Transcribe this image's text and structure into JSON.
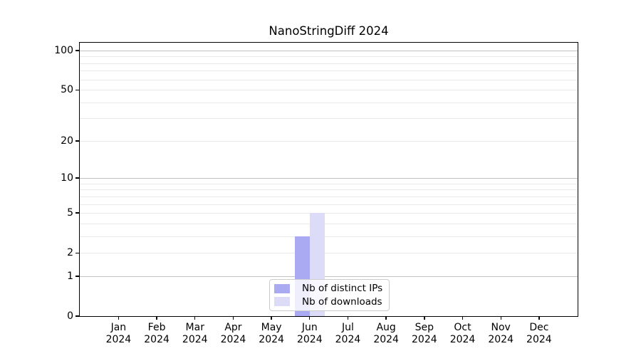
{
  "chart_data": {
    "type": "bar",
    "title": "NanoStringDiff 2024",
    "year": "2024",
    "categories": [
      "Jan",
      "Feb",
      "Mar",
      "Apr",
      "May",
      "Jun",
      "Jul",
      "Aug",
      "Sep",
      "Oct",
      "Nov",
      "Dec"
    ],
    "series": [
      {
        "name": "Nb of distinct IPs",
        "color": "#aaaaf2",
        "values": [
          0,
          0,
          0,
          0,
          0,
          3,
          0,
          0,
          0,
          0,
          0,
          0
        ]
      },
      {
        "name": "Nb of downloads",
        "color": "#dcdcf8",
        "values": [
          0,
          0,
          0,
          0,
          0,
          5,
          0,
          0,
          0,
          0,
          0,
          0
        ]
      }
    ],
    "xlabel": "",
    "ylabel": "",
    "yscale": "log10(1+x)",
    "y_ticks": [
      0,
      1,
      2,
      5,
      10,
      20,
      50,
      100
    ],
    "y_major_gridlines": [
      1,
      10,
      100
    ],
    "y_minor_gridlines": [
      2,
      3,
      4,
      5,
      6,
      7,
      8,
      9,
      20,
      30,
      40,
      50,
      60,
      70,
      80,
      90
    ],
    "ylim": [
      0,
      113
    ],
    "grid": "horizontal",
    "legend_position": "lower center"
  },
  "colors": {
    "distinct_ips_bar": "#aaaaf2",
    "downloads_bar": "#dcdcf8",
    "major_grid": "#c2c2c2",
    "minor_grid": "#e9e9e9",
    "frame": "#000000",
    "background": "#ffffff",
    "legend_border": "#cccccc"
  }
}
